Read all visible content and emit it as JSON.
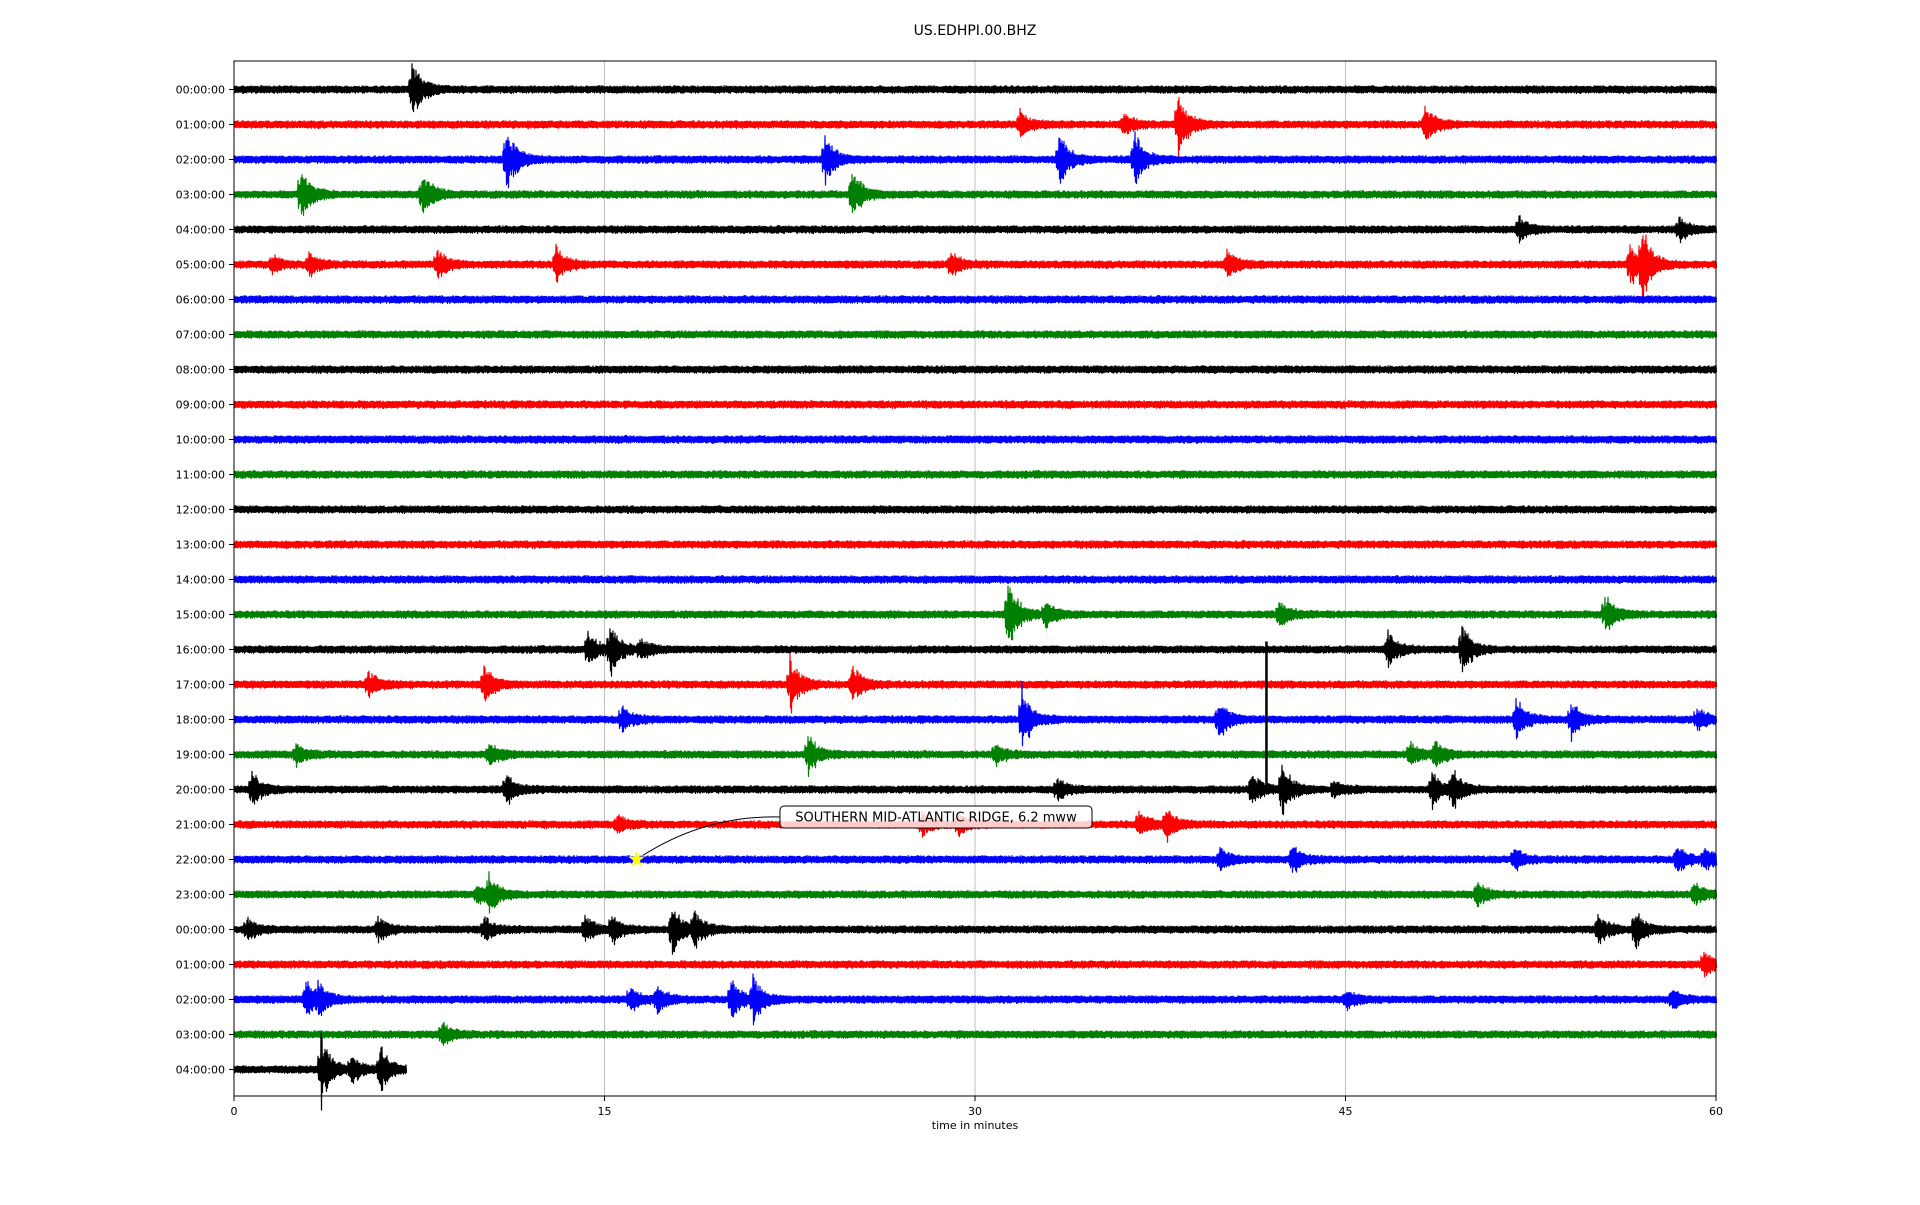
{
  "chart_data": {
    "type": "line",
    "title": "US.EDHPI.00.BHZ",
    "xlabel": "time in minutes",
    "ylabel": "",
    "xlim": [
      0,
      60
    ],
    "x_ticks": [
      0,
      15,
      30,
      45,
      60
    ],
    "grid": "vertical",
    "row_labels": [
      "00:00:00",
      "01:00:00",
      "02:00:00",
      "03:00:00",
      "04:00:00",
      "05:00:00",
      "06:00:00",
      "07:00:00",
      "08:00:00",
      "09:00:00",
      "10:00:00",
      "11:00:00",
      "12:00:00",
      "13:00:00",
      "14:00:00",
      "15:00:00",
      "16:00:00",
      "17:00:00",
      "18:00:00",
      "19:00:00",
      "20:00:00",
      "21:00:00",
      "22:00:00",
      "23:00:00",
      "00:00:00",
      "01:00:00",
      "02:00:00",
      "03:00:00",
      "04:00:00"
    ],
    "colors": [
      "#000000",
      "#ff0000",
      "#0000ff",
      "#008000"
    ],
    "last_row_end_minute": 7,
    "events": [
      [
        [
          7.2,
          1.8
        ]
      ],
      [
        [
          31.8,
          0.8
        ],
        [
          36,
          0.7
        ],
        [
          38.2,
          2.2
        ],
        [
          48.2,
          1.2
        ]
      ],
      [
        [
          11,
          2.2
        ],
        [
          23.9,
          1.6
        ],
        [
          33.4,
          1.7
        ],
        [
          36.4,
          1.9
        ]
      ],
      [
        [
          2.7,
          1.8
        ],
        [
          7.6,
          1.4
        ],
        [
          25,
          1.6
        ]
      ],
      [
        [
          52,
          0.8
        ],
        [
          58.5,
          0.7
        ]
      ],
      [
        [
          1.5,
          0.6
        ],
        [
          3,
          0.8
        ],
        [
          8.2,
          0.9
        ],
        [
          13,
          1.4
        ],
        [
          29,
          0.8
        ],
        [
          40.2,
          0.9
        ],
        [
          56.5,
          1.5
        ],
        [
          57,
          2.3
        ]
      ],
      [],
      [],
      [],
      [],
      [],
      [],
      [],
      [],
      [],
      [
        [
          31.3,
          2.5
        ],
        [
          32.8,
          0.9
        ],
        [
          42.3,
          0.9
        ],
        [
          55.5,
          1.2
        ]
      ],
      [
        [
          14.3,
          1.2
        ],
        [
          15.2,
          1.8
        ],
        [
          16.4,
          0.7
        ],
        [
          46.7,
          1.1
        ],
        [
          49.7,
          1.6
        ]
      ],
      [
        [
          5.4,
          0.8
        ],
        [
          10.1,
          1.2
        ],
        [
          22.5,
          1.8
        ],
        [
          25,
          1.2
        ]
      ],
      [
        [
          15.7,
          0.8
        ],
        [
          31.9,
          2.0
        ],
        [
          39.8,
          1.4
        ],
        [
          51.9,
          1.3
        ],
        [
          54.1,
          1.3
        ],
        [
          59.2,
          0.8
        ]
      ],
      [
        [
          2.5,
          0.7
        ],
        [
          10.3,
          0.8
        ],
        [
          23.2,
          1.3
        ],
        [
          30.8,
          0.7
        ],
        [
          47.6,
          0.7
        ],
        [
          48.6,
          0.9
        ]
      ],
      [
        [
          0.7,
          1.1
        ],
        [
          11,
          1.0
        ],
        [
          33.3,
          0.7
        ],
        [
          41.2,
          1.0
        ],
        [
          42.4,
          1.9
        ],
        [
          44.5,
          0.6
        ],
        [
          48.5,
          1.2
        ],
        [
          49.3,
          1.2
        ]
      ],
      [
        [
          15.5,
          0.6
        ],
        [
          27.8,
          0.8
        ],
        [
          29.3,
          0.7
        ],
        [
          36.6,
          0.9
        ],
        [
          37.7,
          1.0
        ]
      ],
      [
        [
          39.9,
          0.7
        ],
        [
          42.8,
          0.9
        ],
        [
          51.8,
          0.7
        ],
        [
          58.4,
          1.0
        ],
        [
          59.5,
          0.7
        ]
      ],
      [
        [
          9.8,
          0.8
        ],
        [
          10.3,
          1.0
        ],
        [
          50.3,
          0.8
        ],
        [
          59.1,
          0.8
        ]
      ],
      [
        [
          0.5,
          0.7
        ],
        [
          5.8,
          0.8
        ],
        [
          10.1,
          0.8
        ],
        [
          14.2,
          0.8
        ],
        [
          15.3,
          0.9
        ],
        [
          17.7,
          1.8
        ],
        [
          18.6,
          1.3
        ],
        [
          55.2,
          1.0
        ],
        [
          56.7,
          1.2
        ]
      ],
      [
        [
          59.5,
          0.8
        ]
      ],
      [
        [
          2.9,
          1.2
        ],
        [
          3.4,
          0.8
        ],
        [
          16,
          0.8
        ],
        [
          17.1,
          0.9
        ],
        [
          20.1,
          1.4
        ],
        [
          21,
          1.5
        ],
        [
          45,
          0.6
        ],
        [
          58.2,
          0.6
        ]
      ],
      [
        [
          8.4,
          0.8
        ]
      ],
      [
        [
          3.5,
          2.3
        ],
        [
          4.7,
          1.0
        ],
        [
          5.9,
          1.5
        ]
      ]
    ],
    "tall_spike": {
      "row": 16,
      "x": 41.8,
      "rows_span": 4.1
    },
    "annotation": {
      "text": "SOUTHERN MID-ATLANTIC RIDGE, 6.2 mww",
      "event_row": 22,
      "event_minute": 16.3,
      "marker": "star",
      "marker_color": "#ffff00"
    }
  }
}
